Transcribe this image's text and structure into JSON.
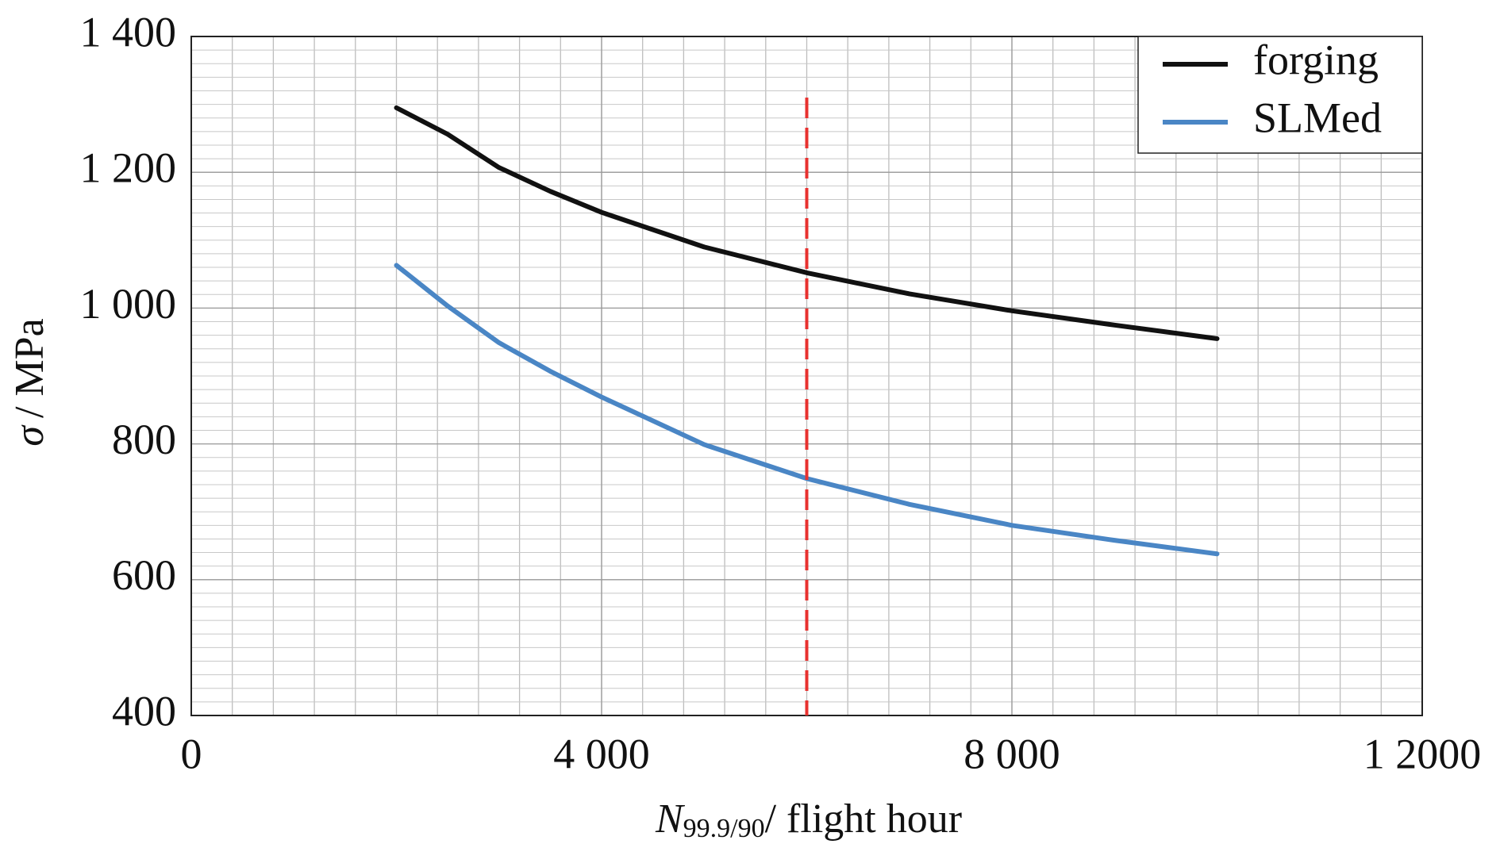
{
  "chart_data": {
    "type": "line",
    "x_label": {
      "symbol": "N",
      "subscript": "99.9/90",
      "unit": "/ flight hour"
    },
    "y_label": {
      "symbol": "σ",
      "unit": "/ MPa"
    },
    "x": [
      2000,
      2500,
      3000,
      3500,
      4000,
      5000,
      6000,
      7000,
      8000,
      9000,
      10000
    ],
    "series": [
      {
        "name": "forging",
        "color": "#111111",
        "values": [
          1295,
          1256,
          1207,
          1172,
          1141,
          1090,
          1052,
          1021,
          996,
          975,
          955
        ]
      },
      {
        "name": "SLMed",
        "color": "#4a86c5",
        "values": [
          1063,
          1003,
          949,
          907,
          869,
          799,
          749,
          711,
          680,
          658,
          638
        ]
      }
    ],
    "xlim": [
      0,
      12000
    ],
    "xticks": [
      0,
      {
        "value": 4000,
        "label": "4 000"
      },
      {
        "value": 8000,
        "label": "8 000"
      },
      {
        "value": 12000,
        "label": "1 2000"
      }
    ],
    "ylim": [
      400,
      1400
    ],
    "yticks": [
      400,
      600,
      800,
      {
        "value": 1000,
        "label": "1 000"
      },
      {
        "value": 1200,
        "label": "1 200"
      },
      {
        "value": 1400,
        "label": "1 400"
      }
    ],
    "grid": true,
    "minor_grid": {
      "x": 400,
      "y": 20
    },
    "vline": {
      "x": 6000,
      "ymax": 1310,
      "color": "#e8312f"
    },
    "legend": "upper right"
  }
}
